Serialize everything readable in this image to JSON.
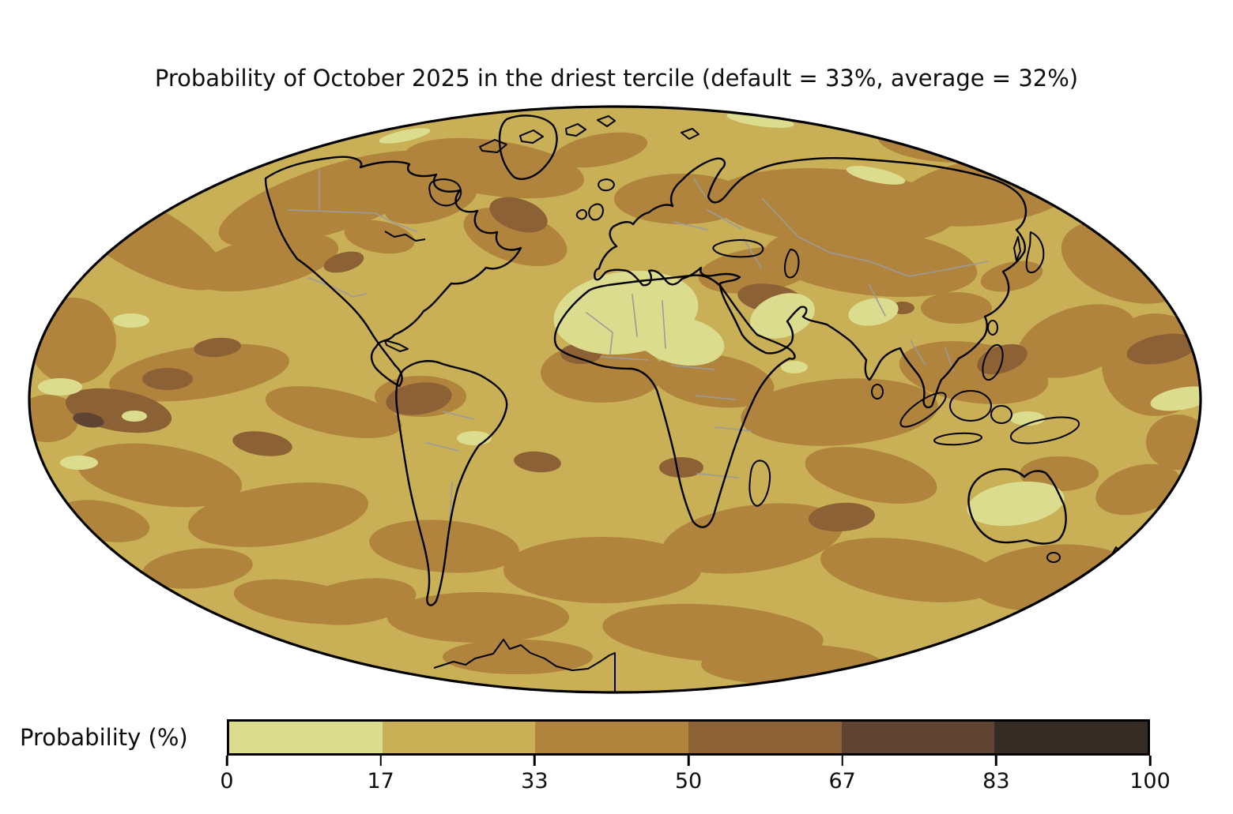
{
  "title": "Probability of October 2025 in the driest tercile (default = 33%, average = 32%)",
  "colorbar": {
    "label": "Probability (%)",
    "ticks": [
      "0",
      "17",
      "33",
      "50",
      "67",
      "83",
      "100"
    ],
    "segments": [
      {
        "from": 0,
        "to": 17,
        "color": "#dcdc8e"
      },
      {
        "from": 17,
        "to": 33,
        "color": "#c9af56"
      },
      {
        "from": 33,
        "to": 50,
        "color": "#b0843c"
      },
      {
        "from": 50,
        "to": 67,
        "color": "#8d6136"
      },
      {
        "from": 67,
        "to": 83,
        "color": "#5f4433"
      },
      {
        "from": 83,
        "to": 100,
        "color": "#352b24"
      }
    ]
  },
  "map": {
    "base_color": "#c9af56",
    "coastline_color": "#000000",
    "country_border_color": "#9b9b9b",
    "outline_color": "#000000",
    "background_color": "#ffffff"
  },
  "chart_data": {
    "type": "heatmap",
    "title": "Probability of October 2025 in the driest tercile (default = 33%, average = 32%)",
    "colorbar_label": "Probability (%)",
    "tick_values": [
      0,
      17,
      33,
      50,
      67,
      83,
      100
    ],
    "bin_ranges": [
      [
        0,
        17
      ],
      [
        17,
        33
      ],
      [
        33,
        50
      ],
      [
        50,
        67
      ],
      [
        67,
        83
      ],
      [
        83,
        100
      ]
    ],
    "bin_colors": [
      "#dcdc8e",
      "#c9af56",
      "#b0843c",
      "#8d6136",
      "#5f4433",
      "#352b24"
    ],
    "projection": "mollweide",
    "legend_position": "bottom",
    "notes": "Filled-contour global map; most area in 17-33% and 33-50% bins, lightest (0-17%) over Sahara, Arabia and central Australia, darkest pockets (50-83%) in eastern equatorial Pacific, Amazon, Arabia and west Pacific"
  }
}
